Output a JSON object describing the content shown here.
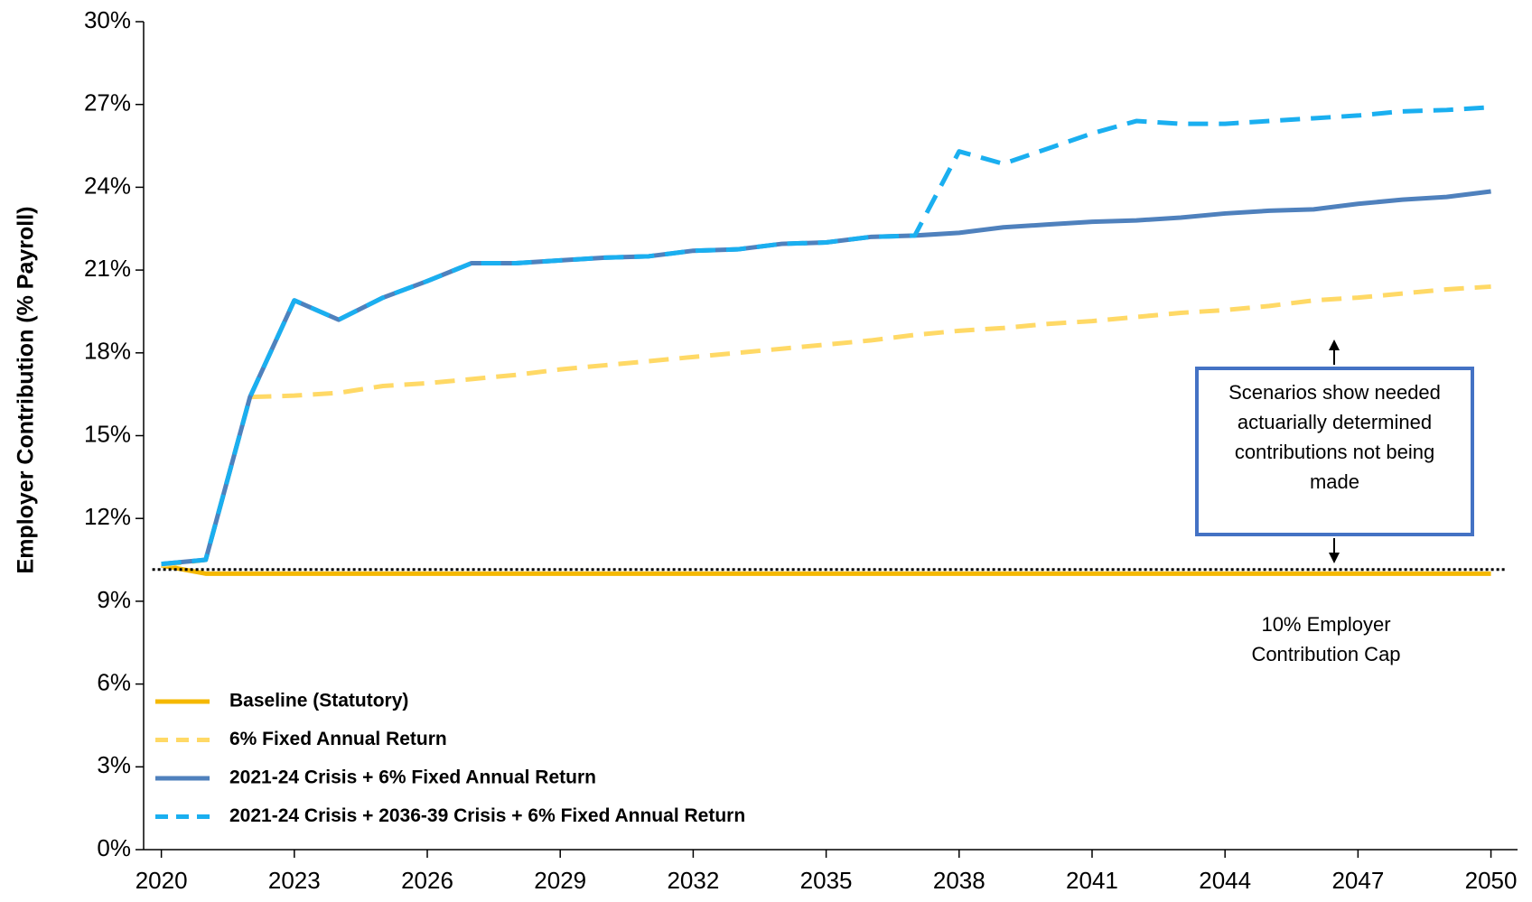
{
  "chart_data": {
    "type": "line",
    "y_axis_label": "Employer Contribution (% Payroll)",
    "x": [
      2020,
      2021,
      2022,
      2023,
      2024,
      2025,
      2026,
      2027,
      2028,
      2029,
      2030,
      2031,
      2032,
      2033,
      2034,
      2035,
      2036,
      2037,
      2038,
      2039,
      2040,
      2041,
      2042,
      2043,
      2044,
      2045,
      2046,
      2047,
      2048,
      2049,
      2050
    ],
    "xlim": [
      2019.6,
      2050.6
    ],
    "xticks": [
      2020,
      2023,
      2026,
      2029,
      2032,
      2035,
      2038,
      2041,
      2044,
      2047,
      2050
    ],
    "ylim": [
      0,
      30
    ],
    "yticks": [
      {
        "value": 0,
        "label": "0%"
      },
      {
        "value": 3,
        "label": "3%"
      },
      {
        "value": 6,
        "label": "6%"
      },
      {
        "value": 9,
        "label": "9%"
      },
      {
        "value": 12,
        "label": "12%"
      },
      {
        "value": 15,
        "label": "15%"
      },
      {
        "value": 18,
        "label": "18%"
      },
      {
        "value": 21,
        "label": "21%"
      },
      {
        "value": 24,
        "label": "24%"
      },
      {
        "value": 27,
        "label": "27%"
      },
      {
        "value": 30,
        "label": "30%"
      }
    ],
    "legend": "lower left",
    "series": [
      {
        "name": "Baseline (Statutory)",
        "color": "#f5b800",
        "dash": "solid",
        "values": [
          10.3,
          10.0,
          10.0,
          10.0,
          10.0,
          10.0,
          10.0,
          10.0,
          10.0,
          10.0,
          10.0,
          10.0,
          10.0,
          10.0,
          10.0,
          10.0,
          10.0,
          10.0,
          10.0,
          10.0,
          10.0,
          10.0,
          10.0,
          10.0,
          10.0,
          10.0,
          10.0,
          10.0,
          10.0,
          10.0,
          10.0
        ]
      },
      {
        "name": "6% Fixed Annual Return",
        "color": "#ffd966",
        "dash": "dashed",
        "values": [
          10.3,
          10.5,
          16.4,
          16.45,
          16.55,
          16.8,
          16.9,
          17.05,
          17.2,
          17.4,
          17.55,
          17.7,
          17.85,
          18.0,
          18.15,
          18.3,
          18.45,
          18.65,
          18.8,
          18.9,
          19.05,
          19.15,
          19.3,
          19.45,
          19.55,
          19.7,
          19.9,
          20.0,
          20.15,
          20.3,
          20.4
        ]
      },
      {
        "name": "2021-24 Crisis + 6% Fixed Annual Return",
        "color": "#4f81bd",
        "dash": "solid",
        "values": [
          10.35,
          10.5,
          16.4,
          19.9,
          19.2,
          20.0,
          20.6,
          21.25,
          21.25,
          21.35,
          21.45,
          21.5,
          21.7,
          21.75,
          21.95,
          22.0,
          22.2,
          22.25,
          22.35,
          22.55,
          22.65,
          22.75,
          22.8,
          22.9,
          23.05,
          23.15,
          23.2,
          23.4,
          23.55,
          23.65,
          23.85
        ]
      },
      {
        "name": "2021-24 Crisis + 2036-39 Crisis + 6% Fixed Annual Return",
        "color": "#1aaff0",
        "dash": "dashed",
        "values": [
          10.35,
          10.5,
          16.4,
          19.9,
          19.2,
          20.0,
          20.6,
          21.25,
          21.25,
          21.35,
          21.45,
          21.5,
          21.7,
          21.75,
          21.95,
          22.0,
          22.2,
          22.25,
          25.3,
          24.85,
          25.4,
          25.95,
          26.4,
          26.3,
          26.3,
          26.4,
          26.5,
          26.6,
          26.75,
          26.8,
          26.9
        ]
      }
    ],
    "cap_line": {
      "value": 10.15,
      "label": "10% Employer Contribution Cap"
    },
    "annotation": "Scenarios show needed actuarially determined contributions not being made"
  }
}
